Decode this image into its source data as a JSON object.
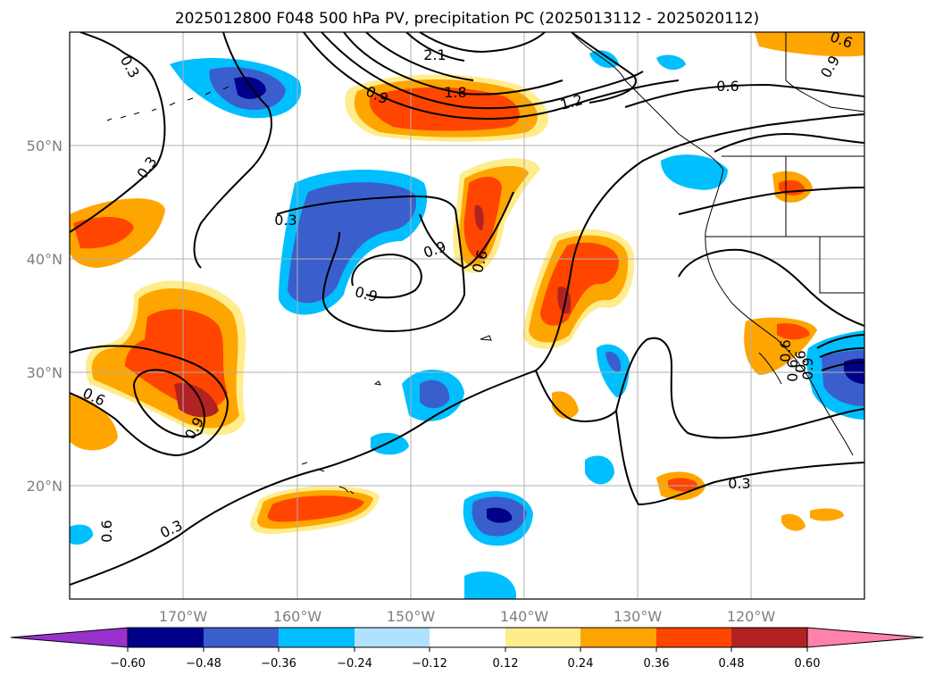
{
  "title": "2025012800 F048 500 hPa PV, precipitation PC (2025013112 - 2025020112)",
  "map": {
    "lon_range": [
      -180,
      -110
    ],
    "lat_range": [
      10,
      60
    ],
    "lat_ticks": [
      "50°N",
      "40°N",
      "30°N",
      "20°N"
    ],
    "lon_ticks": [
      "170°W",
      "160°W",
      "150°W",
      "140°W",
      "130°W",
      "120°W"
    ],
    "grid": true
  },
  "contour_labels": [
    "0.3",
    "2.1",
    "0.6",
    "0.9",
    "1.8",
    "1.2",
    "0.6",
    "0.9",
    "0.3",
    "0.3",
    "0.9",
    "0.6",
    "0.9",
    "0.6",
    "0.9",
    "0.9",
    "0.6",
    "0.3",
    "0.3",
    "0.6",
    "0.6",
    "0.6"
  ],
  "colorbar": {
    "ticks": [
      "−0.60",
      "−0.48",
      "−0.36",
      "−0.24",
      "−0.12",
      "0.12",
      "0.24",
      "0.36",
      "0.48",
      "0.60"
    ],
    "colors": [
      "#9932cc",
      "#00008b",
      "#3a5fcd",
      "#00bfff",
      "#b0e2ff",
      "#ffffff",
      "#ffec8b",
      "#ffa500",
      "#ff4500",
      "#b22222",
      "#ff82ab"
    ]
  }
}
